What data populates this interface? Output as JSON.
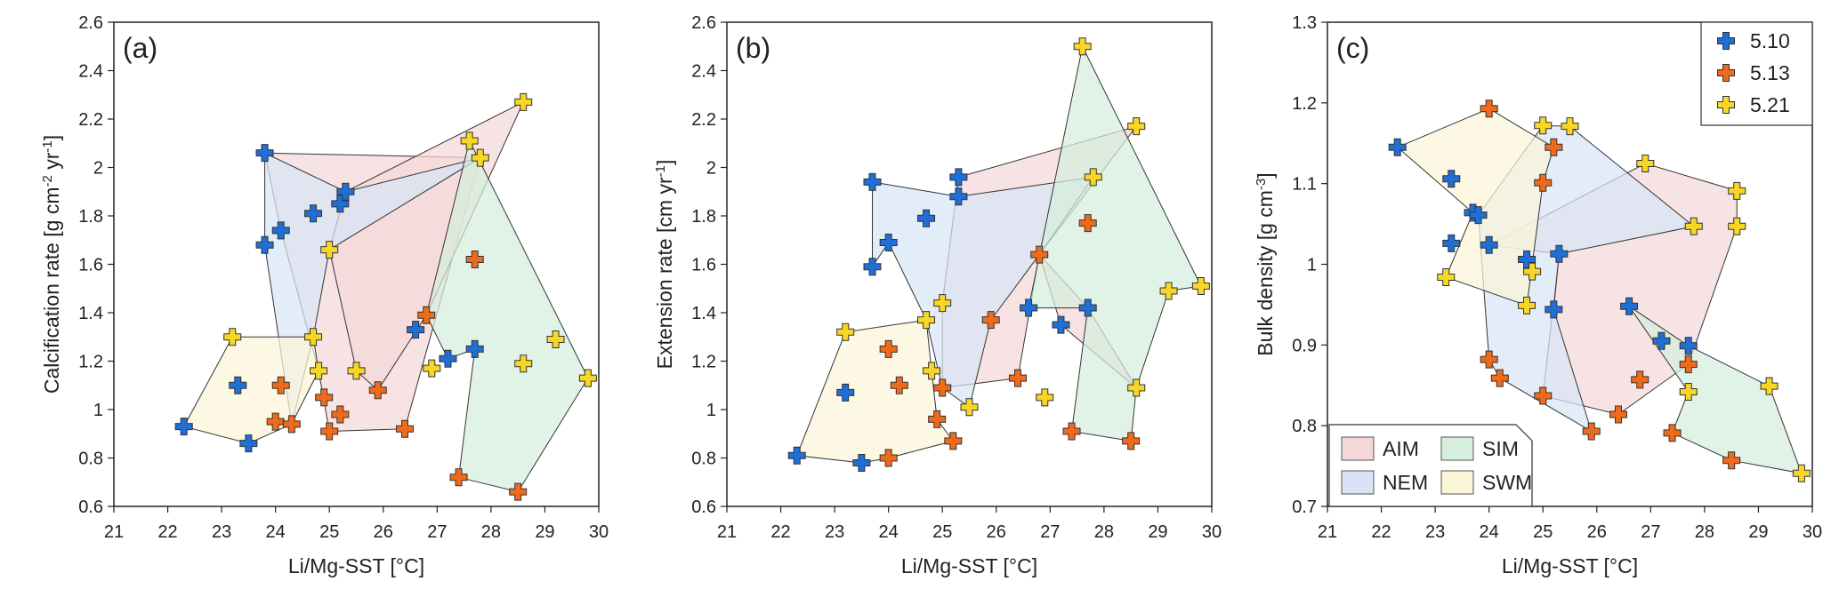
{
  "colors": {
    "AIM": "#f4d8d8",
    "NEM": "#d8e4f6",
    "SIM": "#d5eedd",
    "SWM": "#fbf5d8",
    "5.10": "#1f6fd6",
    "5.13": "#ef6a1a",
    "5.21": "#f7d626"
  },
  "legend_markers": {
    "items": [
      "5.10",
      "5.13",
      "5.21"
    ]
  },
  "legend_regions": {
    "items": [
      "AIM",
      "SIM",
      "NEM",
      "SWM"
    ]
  },
  "chart_data": [
    {
      "type": "scatter",
      "panel_label": "(a)",
      "xlabel": "Li/Mg-SST [°C]",
      "ylabel": "Calcification rate [g cm⁻² yr⁻¹]",
      "xlim": [
        21,
        30
      ],
      "ylim": [
        0.6,
        2.6
      ],
      "xticks": [
        "21",
        "22",
        "23",
        "24",
        "25",
        "26",
        "27",
        "28",
        "29",
        "30"
      ],
      "yticks": [
        "0.6",
        "0.8",
        "1",
        "1.2",
        "1.4",
        "1.6",
        "1.8",
        "2",
        "2.2",
        "2.4",
        "2.6"
      ],
      "series": [
        {
          "name": "5.10",
          "points": [
            [
              22.3,
              0.93
            ],
            [
              23.3,
              1.1
            ],
            [
              23.5,
              0.86
            ],
            [
              23.8,
              2.06
            ],
            [
              23.8,
              1.68
            ],
            [
              24.1,
              1.74
            ],
            [
              24.7,
              1.81
            ],
            [
              25.2,
              1.85
            ],
            [
              25.3,
              1.9
            ],
            [
              26.6,
              1.33
            ],
            [
              27.2,
              1.21
            ],
            [
              27.7,
              1.25
            ]
          ]
        },
        {
          "name": "5.13",
          "points": [
            [
              24.0,
              0.95
            ],
            [
              24.3,
              0.94
            ],
            [
              24.1,
              1.1
            ],
            [
              24.9,
              1.05
            ],
            [
              25.0,
              0.91
            ],
            [
              25.2,
              0.98
            ],
            [
              25.9,
              1.08
            ],
            [
              26.4,
              0.92
            ],
            [
              26.8,
              1.39
            ],
            [
              27.4,
              0.72
            ],
            [
              27.7,
              1.62
            ],
            [
              28.5,
              0.66
            ]
          ]
        },
        {
          "name": "5.21",
          "points": [
            [
              23.2,
              1.3
            ],
            [
              24.7,
              1.3
            ],
            [
              24.8,
              1.16
            ],
            [
              25.5,
              1.16
            ],
            [
              25.0,
              1.66
            ],
            [
              26.9,
              1.17
            ],
            [
              27.6,
              2.11
            ],
            [
              27.8,
              2.04
            ],
            [
              28.6,
              2.27
            ],
            [
              28.6,
              1.19
            ],
            [
              29.2,
              1.29
            ],
            [
              29.8,
              1.13
            ]
          ]
        }
      ],
      "regions": [
        {
          "name": "AIM",
          "vertices": [
            [
              23.8,
              2.06
            ],
            [
              27.8,
              2.04
            ],
            [
              26.4,
              0.92
            ],
            [
              25.0,
              0.91
            ],
            [
              24.8,
              1.16
            ],
            [
              24.1,
              1.74
            ]
          ]
        },
        {
          "name": "AIM",
          "vertices": [
            [
              25.3,
              1.9
            ],
            [
              28.6,
              2.27
            ],
            [
              26.8,
              1.39
            ],
            [
              25.9,
              1.08
            ],
            [
              25.5,
              1.16
            ],
            [
              25.0,
              1.66
            ]
          ]
        },
        {
          "name": "NEM",
          "vertices": [
            [
              23.8,
              2.06
            ],
            [
              25.3,
              1.9
            ],
            [
              27.8,
              2.04
            ],
            [
              25.0,
              1.66
            ],
            [
              24.7,
              1.3
            ],
            [
              24.3,
              0.94
            ],
            [
              23.8,
              1.68
            ]
          ]
        },
        {
          "name": "SIM",
          "vertices": [
            [
              26.8,
              1.39
            ],
            [
              27.6,
              2.11
            ],
            [
              29.8,
              1.13
            ],
            [
              28.5,
              0.66
            ],
            [
              27.4,
              0.72
            ],
            [
              27.7,
              1.25
            ],
            [
              27.2,
              1.21
            ]
          ]
        },
        {
          "name": "SWM",
          "vertices": [
            [
              22.3,
              0.93
            ],
            [
              23.2,
              1.3
            ],
            [
              24.7,
              1.3
            ],
            [
              24.8,
              1.16
            ],
            [
              24.3,
              0.94
            ],
            [
              23.5,
              0.86
            ]
          ]
        }
      ]
    },
    {
      "type": "scatter",
      "panel_label": "(b)",
      "xlabel": "Li/Mg-SST [°C]",
      "ylabel": "Extension rate [cm yr⁻¹]",
      "xlim": [
        21,
        30
      ],
      "ylim": [
        0.6,
        2.6
      ],
      "xticks": [
        "21",
        "22",
        "23",
        "24",
        "25",
        "26",
        "27",
        "28",
        "29",
        "30"
      ],
      "yticks": [
        "0.6",
        "0.8",
        "1",
        "1.2",
        "1.4",
        "1.6",
        "1.8",
        "2",
        "2.2",
        "2.4",
        "2.6"
      ],
      "series": [
        {
          "name": "5.10",
          "points": [
            [
              22.3,
              0.81
            ],
            [
              23.2,
              1.07
            ],
            [
              23.5,
              0.78
            ],
            [
              23.7,
              1.94
            ],
            [
              23.7,
              1.59
            ],
            [
              24.0,
              1.69
            ],
            [
              24.7,
              1.79
            ],
            [
              25.3,
              1.96
            ],
            [
              25.3,
              1.88
            ],
            [
              26.6,
              1.42
            ],
            [
              27.2,
              1.35
            ],
            [
              27.7,
              1.42
            ]
          ]
        },
        {
          "name": "5.13",
          "points": [
            [
              24.0,
              0.8
            ],
            [
              24.0,
              1.25
            ],
            [
              24.2,
              1.1
            ],
            [
              24.9,
              0.96
            ],
            [
              25.0,
              1.09
            ],
            [
              25.2,
              0.87
            ],
            [
              25.9,
              1.37
            ],
            [
              26.4,
              1.13
            ],
            [
              26.8,
              1.64
            ],
            [
              27.4,
              0.91
            ],
            [
              27.7,
              1.77
            ],
            [
              28.5,
              0.87
            ]
          ]
        },
        {
          "name": "5.21",
          "points": [
            [
              23.2,
              1.32
            ],
            [
              24.7,
              1.37
            ],
            [
              24.8,
              1.16
            ],
            [
              25.5,
              1.01
            ],
            [
              25.0,
              1.44
            ],
            [
              26.9,
              1.05
            ],
            [
              27.6,
              2.5
            ],
            [
              27.8,
              1.96
            ],
            [
              28.6,
              2.17
            ],
            [
              28.6,
              1.09
            ],
            [
              29.2,
              1.49
            ],
            [
              29.8,
              1.51
            ]
          ]
        }
      ],
      "regions": [
        {
          "name": "AIM",
          "vertices": [
            [
              25.3,
              1.96
            ],
            [
              28.6,
              2.17
            ],
            [
              26.8,
              1.64
            ],
            [
              26.4,
              1.13
            ],
            [
              25.0,
              1.09
            ],
            [
              25.0,
              1.44
            ]
          ]
        },
        {
          "name": "AIM",
          "vertices": [
            [
              26.8,
              1.64
            ],
            [
              27.7,
              1.42
            ],
            [
              28.6,
              1.09
            ],
            [
              27.2,
              1.35
            ]
          ]
        },
        {
          "name": "NEM",
          "vertices": [
            [
              23.7,
              1.94
            ],
            [
              25.3,
              1.88
            ],
            [
              27.8,
              1.96
            ],
            [
              26.8,
              1.64
            ],
            [
              25.9,
              1.37
            ],
            [
              25.5,
              1.01
            ],
            [
              25.0,
              1.09
            ],
            [
              24.7,
              1.37
            ],
            [
              24.0,
              1.69
            ],
            [
              23.7,
              1.59
            ]
          ]
        },
        {
          "name": "SIM",
          "vertices": [
            [
              26.6,
              1.42
            ],
            [
              27.6,
              2.5
            ],
            [
              29.8,
              1.51
            ],
            [
              29.2,
              1.49
            ],
            [
              28.6,
              1.09
            ],
            [
              28.5,
              0.87
            ],
            [
              27.4,
              0.91
            ],
            [
              27.7,
              1.42
            ]
          ]
        },
        {
          "name": "SWM",
          "vertices": [
            [
              22.3,
              0.81
            ],
            [
              23.2,
              1.32
            ],
            [
              24.7,
              1.37
            ],
            [
              24.8,
              1.16
            ],
            [
              24.9,
              0.96
            ],
            [
              25.2,
              0.87
            ],
            [
              24.0,
              0.8
            ],
            [
              23.5,
              0.78
            ]
          ]
        }
      ]
    },
    {
      "type": "scatter",
      "panel_label": "(c)",
      "xlabel": "Li/Mg-SST [°C]",
      "ylabel": "Bulk density [g cm⁻³]",
      "xlim": [
        21,
        30
      ],
      "ylim": [
        0.7,
        1.3
      ],
      "xticks": [
        "21",
        "22",
        "23",
        "24",
        "25",
        "26",
        "27",
        "28",
        "29",
        "30"
      ],
      "yticks": [
        "0.7",
        "0.8",
        "0.9",
        "1",
        "1.1",
        "1.2",
        "1.3"
      ],
      "series": [
        {
          "name": "5.10",
          "points": [
            [
              22.3,
              1.145
            ],
            [
              23.3,
              1.106
            ],
            [
              23.3,
              1.026
            ],
            [
              23.7,
              1.064
            ],
            [
              23.8,
              1.061
            ],
            [
              24.0,
              1.024
            ],
            [
              24.7,
              1.006
            ],
            [
              25.2,
              0.944
            ],
            [
              25.3,
              1.013
            ],
            [
              26.6,
              0.948
            ],
            [
              27.2,
              0.905
            ],
            [
              27.7,
              0.899
            ]
          ]
        },
        {
          "name": "5.13",
          "points": [
            [
              24.0,
              1.193
            ],
            [
              24.0,
              0.882
            ],
            [
              24.2,
              0.859
            ],
            [
              25.0,
              1.101
            ],
            [
              25.0,
              0.837
            ],
            [
              25.2,
              1.145
            ],
            [
              25.9,
              0.793
            ],
            [
              26.4,
              0.814
            ],
            [
              26.8,
              0.857
            ],
            [
              27.4,
              0.791
            ],
            [
              27.7,
              0.876
            ],
            [
              28.5,
              0.757
            ]
          ]
        },
        {
          "name": "5.21",
          "points": [
            [
              23.2,
              0.984
            ],
            [
              24.7,
              0.949
            ],
            [
              24.8,
              0.991
            ],
            [
              25.0,
              1.172
            ],
            [
              25.5,
              1.171
            ],
            [
              26.9,
              1.125
            ],
            [
              27.7,
              0.842
            ],
            [
              27.8,
              1.047
            ],
            [
              28.6,
              1.091
            ],
            [
              28.6,
              1.047
            ],
            [
              29.2,
              0.849
            ],
            [
              29.8,
              0.741
            ]
          ]
        }
      ],
      "regions": [
        {
          "name": "AIM",
          "vertices": [
            [
              24.0,
              1.024
            ],
            [
              26.9,
              1.125
            ],
            [
              28.6,
              1.091
            ],
            [
              28.6,
              1.047
            ],
            [
              27.7,
              0.876
            ],
            [
              26.4,
              0.814
            ],
            [
              25.0,
              0.837
            ],
            [
              25.3,
              1.013
            ]
          ]
        },
        {
          "name": "NEM",
          "vertices": [
            [
              23.8,
              1.061
            ],
            [
              24.0,
              0.882
            ],
            [
              24.2,
              0.859
            ],
            [
              25.9,
              0.793
            ],
            [
              25.2,
              0.944
            ],
            [
              25.3,
              1.013
            ],
            [
              27.8,
              1.047
            ],
            [
              25.5,
              1.171
            ],
            [
              25.0,
              1.172
            ]
          ]
        },
        {
          "name": "SIM",
          "vertices": [
            [
              26.6,
              0.948
            ],
            [
              27.7,
              0.899
            ],
            [
              29.2,
              0.849
            ],
            [
              29.8,
              0.741
            ],
            [
              28.5,
              0.757
            ],
            [
              27.4,
              0.791
            ],
            [
              27.7,
              0.842
            ]
          ]
        },
        {
          "name": "SWM",
          "vertices": [
            [
              22.3,
              1.145
            ],
            [
              24.0,
              1.193
            ],
            [
              25.2,
              1.145
            ],
            [
              25.0,
              1.101
            ],
            [
              24.7,
              0.949
            ],
            [
              23.2,
              0.984
            ],
            [
              23.7,
              1.064
            ]
          ]
        }
      ]
    }
  ]
}
